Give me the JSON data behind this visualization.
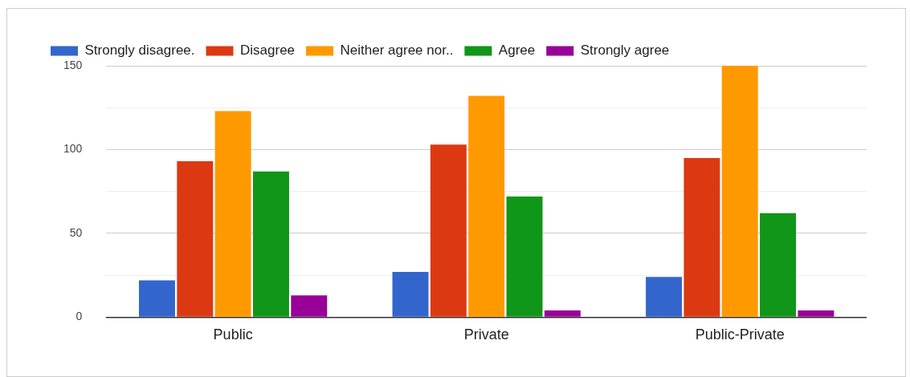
{
  "chart_data": {
    "type": "bar",
    "categories": [
      "Public",
      "Private",
      "Public-Private"
    ],
    "series": [
      {
        "name": "Strongly disagree.",
        "color": "#3366cc",
        "values": [
          22,
          27,
          24
        ]
      },
      {
        "name": "Disagree",
        "color": "#dc3912",
        "values": [
          93,
          103,
          95
        ]
      },
      {
        "name": "Neither agree nor..",
        "color": "#ff9900",
        "values": [
          123,
          132,
          150
        ]
      },
      {
        "name": "Agree",
        "color": "#109618",
        "values": [
          87,
          72,
          62
        ]
      },
      {
        "name": "Strongly agree",
        "color": "#990099",
        "values": [
          13,
          4,
          4
        ]
      }
    ],
    "ylim": [
      0,
      150
    ],
    "yticks": [
      0,
      {
        "value": 25,
        "label": null
      },
      50,
      {
        "value": 75,
        "label": null
      },
      100,
      {
        "value": 125,
        "label": null
      },
      150
    ],
    "grid": "y",
    "legend": "top"
  }
}
